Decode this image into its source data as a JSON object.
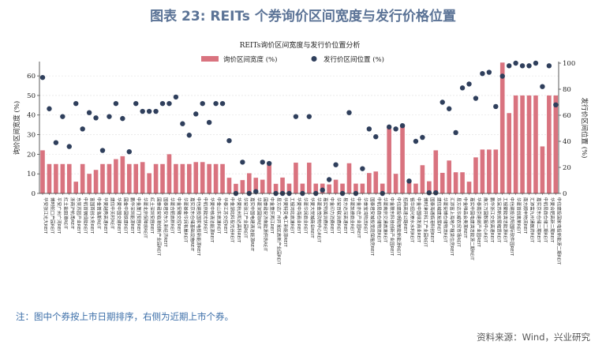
{
  "header": {
    "title": "图表 23: REITs 个券询价区间宽度与发行价格位置"
  },
  "footer": {
    "note": "注：图中个券按上市日期排序，右侧为近期上市个券。",
    "source": "资料来源：Wind，兴业研究"
  },
  "colors": {
    "bar": "#d9737f",
    "dot": "#2f3f5c",
    "title": "#5b7396"
  },
  "chart_data": {
    "type": "bar",
    "title": "REITs询价区间宽度与发行价位置分析",
    "ylabel": "询价区间宽度 (%)",
    "y2label": "发行价区间位置 (%)",
    "ylim": [
      0,
      67.3
    ],
    "y2lim": [
      0,
      100
    ],
    "yticks": [
      0,
      10,
      20,
      30,
      40,
      50,
      60
    ],
    "y2ticks": [
      0,
      20,
      40,
      60,
      80,
      100
    ],
    "grid": true,
    "legend_position": "top-center",
    "categories": [
      "华安张江光大REIT",
      "博时蛇口产园REIT",
      "平安广州广河REIT",
      "红土盐田港REIT",
      "浙商沪杭甬REIT",
      "东吴苏园产业REIT",
      "中航首钢绿能REIT",
      "富国首创水务REIT",
      "中金普洛斯REIT",
      "华夏越秀高速REIT",
      "建信中关村REIT",
      "华夏中国交建REIT",
      "国金中国铁建REIT",
      "鹏华深圳能源REIT",
      "中金厦门安居REIT",
      "华夏北京保障房REIT",
      "红土深圳安居REIT",
      "国泰君安临港创新产业园REIT",
      "国泰君安东久新经济REIT",
      "华夏合肥高新REIT",
      "中金安徽交控REIT",
      "华夏基金华润有巢REIT",
      "嘉实京东仓储基础设施REIT",
      "中信建投国家电投新能源REIT",
      "中航京能光伏REIT",
      "华夏中核清洁能源REIT",
      "中金山东高速REIT",
      "华泰江苏交控REIT",
      "中金湖北科投光谷REIT",
      "华夏杭州和达高科REIT",
      "华安张江产业园REIT",
      "嘉实中国电建清洁能源REIT",
      "华夏深国际REIT",
      "国泰君安济南能源供热REIT",
      "中金重庆两江REIT",
      "易方达广州开发区高新产业园REIT",
      "华夏特变电工新能源REIT",
      "工银河北高速REIT",
      "华夏中海商业REIT",
      "华夏华润商业REIT",
      "华夏大悦城商业REIT",
      "华夏金茂购物中心REIT",
      "嘉实物美消费REIT",
      "中金印力消费REIT",
      "华安百联消费REIT",
      "易方达深高速REIT",
      "华夏凯德商业REIT",
      "中金亦庄产业园REIT",
      "华泰宝湾物流REIT",
      "国泰君安城投宽庭保租房REIT",
      "中航易商仓储物流REIT",
      "华夏南京交通高速REIT",
      "中金联东科技创新产业园REIT",
      "中信建投明阳智能新能源REIT",
      "招商高速公路REIT",
      "银华绍兴原水水利REIT",
      "中金中国绿发商业REIT",
      "博时津开科工产业园REIT",
      "国泰海通临港科创REIT",
      "建信城建发展REIT",
      "华夏安博仓储物流REIT",
      "汇添富上海地产租赁住房REIT",
      "易方达华威农贸市场REIT",
      "中金唯品会奥莱REIT",
      "嘉实中国电建清洁能源二期REIT",
      "华泰南京建邺产业园REIT",
      "南方万国数据中心REIT",
      "鹏华浙江交投高速REIT",
      "东吴苏新房屋租赁REIT",
      "工银蒙能清洁能源REIT",
      "中信建投沈阳国际软件园REIT",
      "华夏首创奥莱REIT",
      "南方顺丰物流REIT",
      "汇添富九州通医药REIT",
      "嘉实京东仓储二期REIT",
      "中航易商仓储二期REIT",
      "华夏合肥高新二期REIT",
      "中信建投国家电投新能源二期REIT"
    ],
    "series": [
      {
        "name": "询价区间宽度 (%)",
        "axis": "left",
        "type": "bar",
        "values": [
          22,
          15,
          15,
          15,
          15,
          6,
          15,
          10,
          12,
          15,
          15,
          17.5,
          19,
          15,
          15,
          16,
          10.3,
          15,
          15,
          20,
          15,
          15,
          15,
          16,
          16,
          15,
          15,
          15,
          8,
          4.9,
          6.8,
          10.3,
          8,
          7,
          15.3,
          4.9,
          8.1,
          5,
          15.7,
          5,
          15.7,
          5,
          5,
          4.6,
          7,
          5,
          15.4,
          5,
          5,
          10.4,
          11.2,
          5,
          34.5,
          10,
          35,
          6,
          5,
          14.4,
          6.2,
          22,
          10.5,
          16.8,
          10.8,
          10.8,
          6,
          18.4,
          22.4,
          22.4,
          22.4,
          66.8,
          41,
          50,
          50,
          50,
          50,
          24,
          50,
          50
        ]
      },
      {
        "name": "发行价区间位置 (%)",
        "axis": "right",
        "type": "scatter",
        "values": [
          89,
          65,
          39,
          59,
          36,
          69,
          49.5,
          62,
          58,
          33,
          59,
          69,
          57.5,
          32,
          69,
          63,
          63,
          63,
          69,
          69,
          74,
          53.5,
          44.7,
          61,
          69,
          54.5,
          69,
          69,
          40.5,
          0,
          24,
          0,
          1.4,
          24,
          23,
          0,
          0,
          0,
          59,
          0,
          59,
          0,
          2.6,
          10.6,
          22,
          0,
          62,
          0,
          19,
          49.5,
          43.5,
          0,
          51,
          49.5,
          52,
          9.5,
          40,
          43,
          0.5,
          0.5,
          70,
          65,
          46.7,
          81,
          84,
          73,
          92,
          93,
          66.7,
          90,
          98,
          100,
          98,
          98,
          100,
          82,
          98,
          68
        ]
      }
    ]
  }
}
